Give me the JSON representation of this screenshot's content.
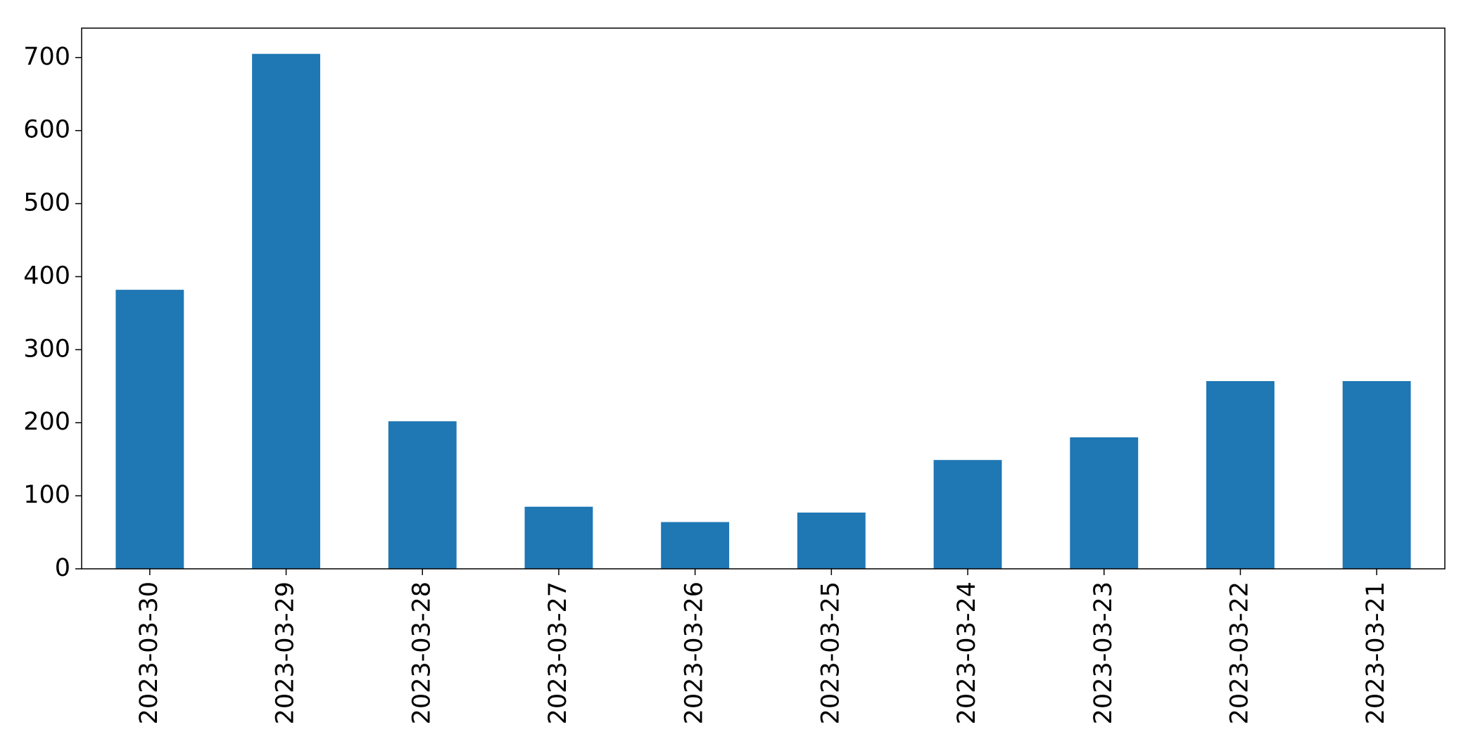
{
  "chart_data": {
    "type": "bar",
    "categories": [
      "2023-03-30",
      "2023-03-29",
      "2023-03-28",
      "2023-03-27",
      "2023-03-26",
      "2023-03-25",
      "2023-03-24",
      "2023-03-23",
      "2023-03-22",
      "2023-03-21"
    ],
    "values": [
      382,
      705,
      202,
      85,
      64,
      77,
      149,
      180,
      257,
      257
    ],
    "color": "#1f77b4",
    "ylim": [
      0,
      740.25
    ],
    "yticks": [
      0,
      100,
      200,
      300,
      400,
      500,
      600,
      700
    ],
    "grid": false
  }
}
